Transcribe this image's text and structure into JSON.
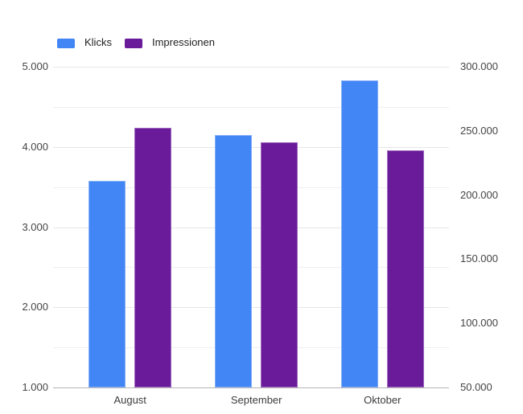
{
  "chart_data": {
    "type": "bar",
    "categories": [
      "August",
      "September",
      "Oktober"
    ],
    "series": [
      {
        "name": "Klicks",
        "color": "#4285f4",
        "axis": "left",
        "values": [
          3575,
          4150,
          4825
        ]
      },
      {
        "name": "Impressionen",
        "color": "#6a1b9a",
        "axis": "right",
        "values": [
          252500,
          241250,
          235000
        ]
      }
    ],
    "left_axis": {
      "min": 1000,
      "max": 5000,
      "tick_values": [
        5000,
        4000,
        3000,
        2000,
        1000
      ],
      "tick_labels": [
        "5.000",
        "4.000",
        "3.000",
        "2.000",
        "1.000"
      ],
      "minor_tick_values": [
        4500,
        3500,
        2500,
        1500
      ]
    },
    "right_axis": {
      "min": 50000,
      "max": 300000,
      "tick_values": [
        300000,
        250000,
        200000,
        150000,
        100000,
        50000
      ],
      "tick_labels": [
        "300.000",
        "250.000",
        "200.000",
        "150.000",
        "100.000",
        "50.000"
      ]
    },
    "legend_position": "top",
    "grid": true
  },
  "legend": {
    "items": [
      {
        "label": "Klicks",
        "color": "#4285f4"
      },
      {
        "label": "Impressionen",
        "color": "#6a1b9a"
      }
    ]
  }
}
